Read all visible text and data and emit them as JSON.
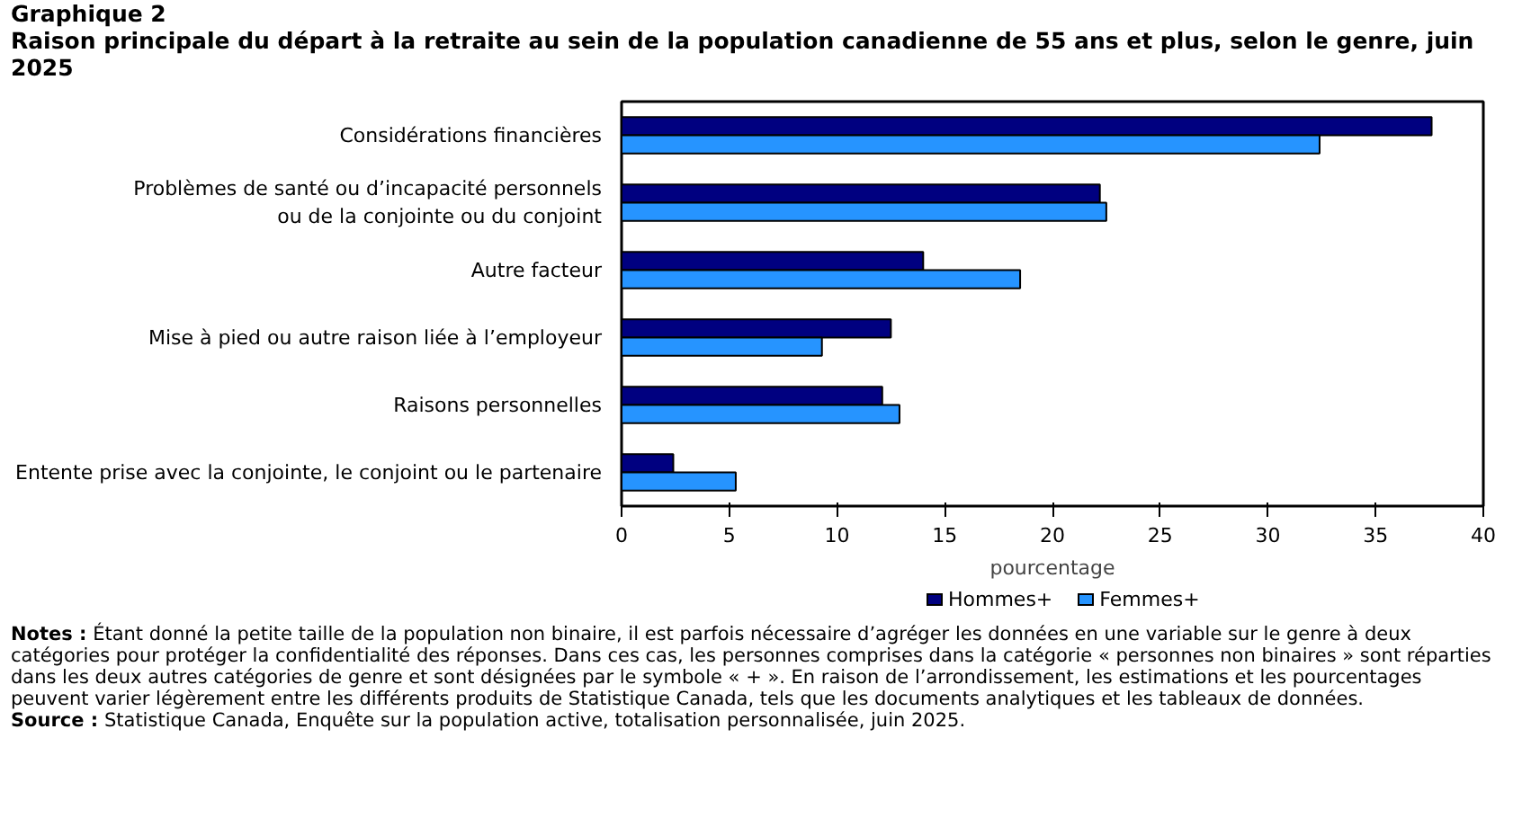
{
  "chart_data": {
    "type": "bar",
    "orientation": "horizontal",
    "title": "Graphique 2",
    "subtitle": "Raison principale du départ à la retraite au sein de la population canadienne de 55 ans et plus, selon le genre, juin 2025",
    "categories": [
      "Considérations financières",
      "Problèmes de santé ou d’incapacité personnels\nou de la conjointe ou du conjoint",
      "Autre facteur",
      "Mise à pied ou autre raison liée à l’employeur",
      "Raisons personnelles",
      "Entente prise avec la conjointe, le conjoint ou le partenaire"
    ],
    "series": [
      {
        "name": "Hommes+",
        "color": "#000080",
        "values": [
          37.6,
          22.2,
          14.0,
          12.5,
          12.1,
          2.4
        ]
      },
      {
        "name": "Femmes+",
        "color": "#2694ff",
        "values": [
          32.4,
          22.5,
          18.5,
          9.3,
          12.9,
          5.3
        ]
      }
    ],
    "xlabel": "pourcentage",
    "xlim": [
      0,
      40
    ],
    "xticks": [
      0,
      5,
      10,
      15,
      20,
      25,
      30,
      35,
      40
    ],
    "grid": false,
    "legend": "bottom",
    "annotations": [
      "Notes : Étant donné la petite taille de la population non binaire, il est parfois nécessaire d’agréger les données en une variable sur le genre à deux catégories pour protéger la confidentialité des réponses. Dans ces cas, les personnes comprises dans la catégorie « personnes non binaires » sont réparties dans les deux autres catégories de genre et sont désignées par le symbole « + ». En raison de l’arrondissement, les estimations et les pourcentages peuvent varier légèrement entre les différents produits de Statistique Canada, tels que les documents analytiques et les tableaux de données.",
      "Source : Statistique Canada, Enquête sur la population active, totalisation personnalisée, juin 2025."
    ]
  }
}
